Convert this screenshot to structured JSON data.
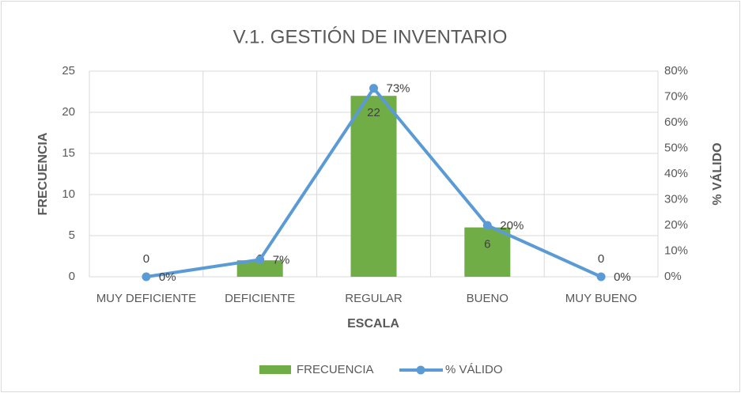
{
  "chart_data": {
    "type": "bar_line",
    "title": "V.1. GESTIÓN DE INVENTARIO",
    "x_label": "ESCALA",
    "y_label": "FRECUENCIA",
    "y2_label": "% VÁLIDO",
    "categories": [
      "MUY DEFICIENTE",
      "DEFICIENTE",
      "REGULAR",
      "BUENO",
      "MUY BUENO"
    ],
    "series": [
      {
        "name": "FRECUENCIA",
        "type": "bar",
        "color": "#70ad47",
        "values": [
          0,
          2,
          22,
          6,
          0
        ]
      },
      {
        "name": "% VÁLIDO",
        "type": "line",
        "axis": "y2",
        "color": "#5b9bd5",
        "values": [
          0,
          6.67,
          73.33,
          20,
          0
        ],
        "value_labels": [
          "0%",
          "7%",
          "73%",
          "20%",
          "0%"
        ]
      }
    ],
    "ylim": [
      0,
      25
    ],
    "yticks": [
      0,
      5,
      10,
      15,
      20,
      25
    ],
    "y2lim": [
      0,
      80
    ],
    "y2ticks": [
      {
        "value": 0,
        "label": "0%"
      },
      {
        "value": 10,
        "label": "10%"
      },
      {
        "value": 20,
        "label": "20%"
      },
      {
        "value": 30,
        "label": "30%"
      },
      {
        "value": 40,
        "label": "40%"
      },
      {
        "value": 50,
        "label": "50%"
      },
      {
        "value": 60,
        "label": "60%"
      },
      {
        "value": 70,
        "label": "70%"
      },
      {
        "value": 80,
        "label": "80%"
      }
    ],
    "grid": true,
    "legend": "bottom"
  }
}
